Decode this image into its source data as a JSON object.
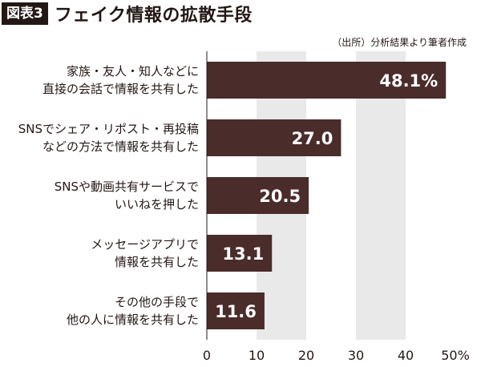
{
  "header": {
    "figure_tag": "図表3",
    "title": "フェイク情報の拡散手段",
    "source": "（出所）分析結果より筆者作成"
  },
  "colors": {
    "bar": "#4a2c2a",
    "band": "#e9e9ea",
    "text": "#231815",
    "value_text": "#ffffff"
  },
  "chart_data": {
    "type": "bar",
    "orientation": "horizontal",
    "title": "フェイク情報の拡散手段",
    "categories": [
      [
        "家族・友人・知人などに",
        "直接の会話で情報を共有した"
      ],
      [
        "SNSでシェア・リポスト・再投稿",
        "などの方法で情報を共有した"
      ],
      [
        "SNSや動画共有サービスで",
        "いいねを押した"
      ],
      [
        "メッセージアプリで",
        "情報を共有した"
      ],
      [
        "その他の手段で",
        "他の人に情報を共有した"
      ]
    ],
    "values": [
      48.1,
      27.0,
      20.5,
      13.1,
      11.6
    ],
    "value_labels": [
      "48.1%",
      "27.0",
      "20.5",
      "13.1",
      "11.6"
    ],
    "xlim": [
      0,
      50
    ],
    "x_ticks": [
      0,
      10,
      20,
      30,
      40,
      50
    ],
    "x_tick_labels": [
      "0",
      "10",
      "20",
      "30",
      "40",
      "50%"
    ],
    "xlabel": "",
    "ylabel": "",
    "grid": "alternating vertical bands"
  }
}
